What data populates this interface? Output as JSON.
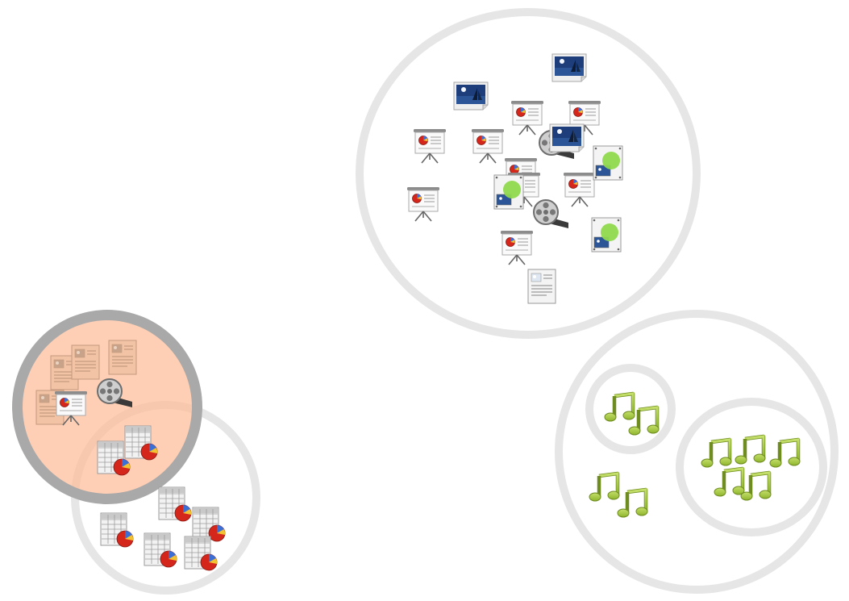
{
  "colors": {
    "ring": "#e6e6e6",
    "ring_selected": "#a9a9a9",
    "selected_fill": "#fdcdb2",
    "music_note": "#9cc13b",
    "paper": "#f4f4f4",
    "pie_red": "#d5261c"
  },
  "groups": [
    {
      "name": "documents-group",
      "items": [
        {
          "icon": "image-icon"
        },
        {
          "icon": "image-icon"
        },
        {
          "icon": "presentation-icon"
        },
        {
          "icon": "presentation-icon"
        },
        {
          "icon": "presentation-icon"
        },
        {
          "icon": "presentation-icon"
        },
        {
          "icon": "presentation-icon"
        },
        {
          "icon": "presentation-icon"
        },
        {
          "icon": "presentation-icon"
        },
        {
          "icon": "presentation-icon"
        },
        {
          "icon": "presentation-icon"
        },
        {
          "icon": "video-reel-icon"
        },
        {
          "icon": "video-reel-icon"
        },
        {
          "icon": "image-icon"
        },
        {
          "icon": "drawing-icon"
        },
        {
          "icon": "drawing-icon"
        },
        {
          "icon": "drawing-icon"
        },
        {
          "icon": "document-icon"
        }
      ]
    },
    {
      "name": "selected-group",
      "selected": true,
      "items": [
        {
          "icon": "document-icon"
        },
        {
          "icon": "document-icon"
        },
        {
          "icon": "document-icon"
        },
        {
          "icon": "document-icon"
        },
        {
          "icon": "video-reel-icon"
        },
        {
          "icon": "presentation-icon"
        }
      ]
    },
    {
      "name": "spreadsheet-group",
      "items": [
        {
          "icon": "spreadsheet-icon"
        },
        {
          "icon": "spreadsheet-icon"
        },
        {
          "icon": "spreadsheet-icon"
        },
        {
          "icon": "spreadsheet-icon"
        },
        {
          "icon": "spreadsheet-icon"
        },
        {
          "icon": "spreadsheet-icon"
        },
        {
          "icon": "spreadsheet-icon"
        }
      ]
    },
    {
      "name": "music-group",
      "items": [
        {
          "icon": "music-note-icon"
        },
        {
          "icon": "music-note-icon"
        },
        {
          "icon": "music-note-icon"
        },
        {
          "icon": "music-note-icon"
        },
        {
          "icon": "music-note-icon"
        },
        {
          "icon": "music-note-icon"
        },
        {
          "icon": "music-note-icon"
        },
        {
          "icon": "music-note-icon"
        },
        {
          "icon": "music-note-icon"
        }
      ]
    }
  ]
}
